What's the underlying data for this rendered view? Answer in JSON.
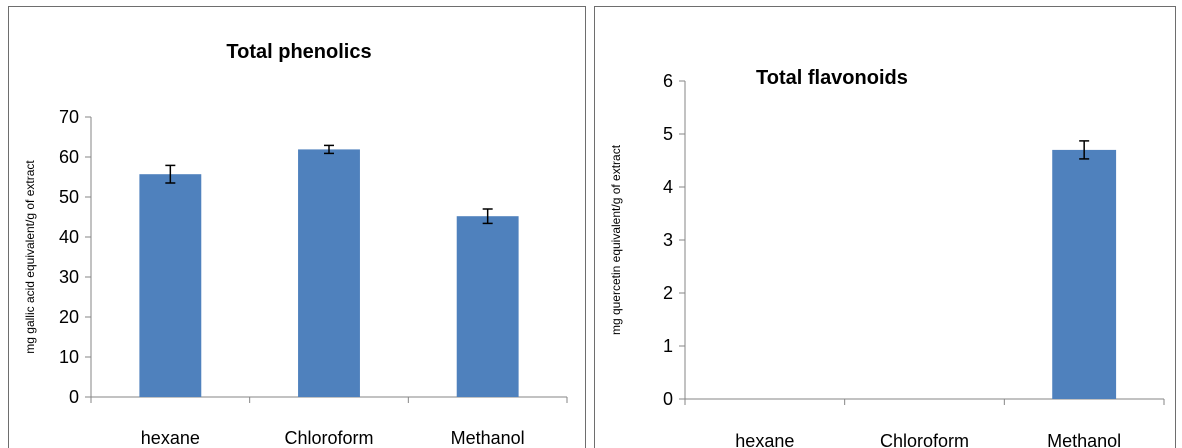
{
  "chart_data": [
    {
      "type": "bar",
      "title": "Total phenolics",
      "xlabel": "",
      "ylabel": "mg gallic acid equivalent/g of extract",
      "categories": [
        "hexane",
        "Chloroform",
        "Methanol"
      ],
      "values": [
        55.7,
        61.9,
        45.2
      ],
      "errors": [
        2.2,
        1.0,
        1.8
      ],
      "ylim": [
        0,
        70
      ],
      "yticks": [
        0,
        10,
        20,
        30,
        40,
        50,
        60,
        70
      ],
      "grid": false,
      "legend": "none",
      "bar_color": "#4f81bd"
    },
    {
      "type": "bar",
      "title": "Total flavonoids",
      "xlabel": "",
      "ylabel": "mg quercetin equivalent/g of extract",
      "categories": [
        "hexane",
        "Chloroform",
        "Methanol"
      ],
      "values": [
        0,
        0,
        4.7
      ],
      "errors": [
        0,
        0,
        0.17
      ],
      "ylim": [
        0,
        6
      ],
      "yticks": [
        0,
        1,
        2,
        3,
        4,
        5,
        6
      ],
      "grid": false,
      "legend": "none",
      "bar_color": "#4f81bd"
    }
  ]
}
